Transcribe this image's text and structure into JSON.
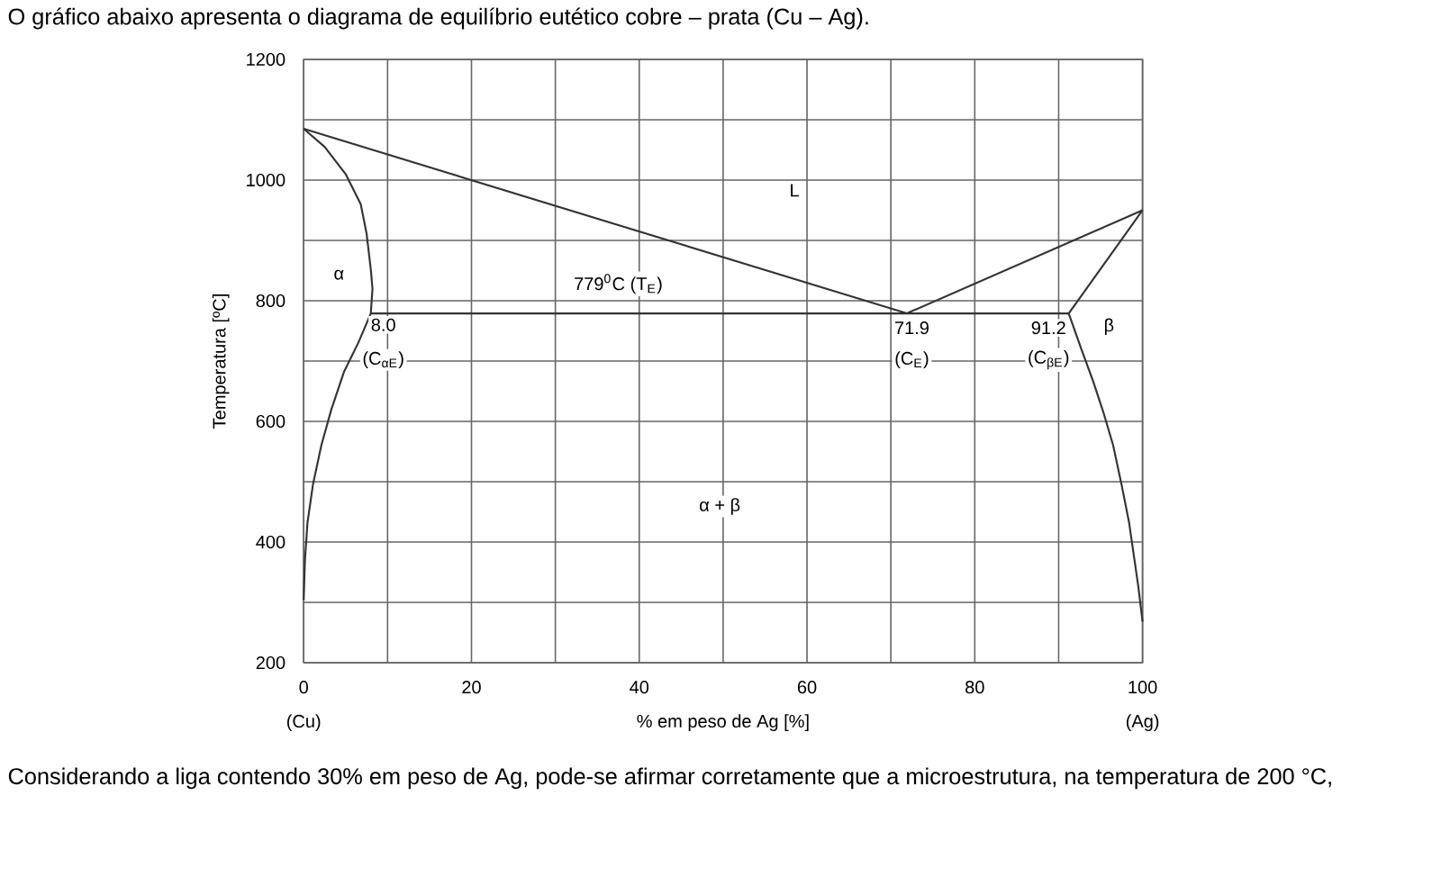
{
  "chart_data": {
    "type": "line",
    "title": "O gráfico abaixo apresenta o diagrama de equilíbrio eutético cobre – prata (Cu – Ag).",
    "xlabel": "% em peso de Ag [%]",
    "ylabel": "Temperatura [ºC]",
    "xlim": [
      0,
      100
    ],
    "ylim": [
      200,
      1200
    ],
    "xticks": [
      0,
      {
        "value": 10,
        "label": null
      },
      20,
      {
        "value": 30,
        "label": null
      },
      40,
      {
        "value": 50,
        "label": null
      },
      60,
      {
        "value": 70,
        "label": null
      },
      80,
      {
        "value": 90,
        "label": null
      },
      100
    ],
    "yticks": [
      200,
      {
        "value": 300,
        "label": null
      },
      400,
      {
        "value": 500,
        "label": null
      },
      600,
      {
        "value": 700,
        "label": null
      },
      800,
      {
        "value": 900,
        "label": null
      },
      1000,
      {
        "value": 1100,
        "label": null
      },
      1200
    ],
    "grid": true,
    "marker": "none",
    "line_style": "solid",
    "series": [
      {
        "color": "#333333",
        "x": [
          0,
          71.9,
          100
        ],
        "values": [
          1085,
          779,
          950
        ]
      },
      {
        "color": "#333333",
        "x": [
          8.0,
          91.2
        ],
        "values": [
          779,
          779
        ]
      },
      {
        "color": "#333333",
        "x": [
          0,
          2.5,
          5.0,
          6.8,
          7.5,
          8.0,
          8.2,
          8.0,
          6.5,
          4.8,
          3.3,
          2.1,
          1.1,
          0.45,
          0.15,
          0
        ],
        "values": [
          1085,
          1055,
          1010,
          960,
          911,
          852,
          820,
          779,
          730,
          682,
          620,
          560,
          495,
          432,
          370,
          304
        ]
      },
      {
        "color": "#333333",
        "x": [
          100,
          91.2,
          92.7,
          94.1,
          95.4,
          96.5,
          97.5,
          98.4,
          99.5,
          100
        ],
        "values": [
          950,
          779,
          720,
          667,
          612,
          560,
          495,
          432,
          326,
          268
        ]
      }
    ],
    "annotations": [
      "(Cu)",
      "(Ag)",
      "779$^{0}$C (T$_{E}$)",
      "Considerando a liga contendo 30% em peso de Ag, pode-se afirmar corretamente que a microestrutura, na temperatura de 200 °C,",
      {
        "text": "L",
        "x": 58.5,
        "y": 983
      },
      {
        "text": "α",
        "x": 4.2,
        "y": 843
      },
      {
        "text": "8.0",
        "x": 9.5,
        "y": 760
      },
      {
        "text": "(C$_{αE}$)",
        "x": 9.5,
        "y": 702
      },
      {
        "text": "71.9",
        "x": 72.5,
        "y": 755
      },
      {
        "text": "(C$_{E}$)",
        "x": 72.5,
        "y": 702
      },
      {
        "text": "91.2",
        "x": 88.8,
        "y": 755
      },
      {
        "text": "(C$_{βE}$)",
        "x": 88.8,
        "y": 702
      },
      {
        "text": "β",
        "x": 96,
        "y": 757
      },
      {
        "text": "α + β",
        "x": 49.6,
        "y": 459
      }
    ]
  }
}
